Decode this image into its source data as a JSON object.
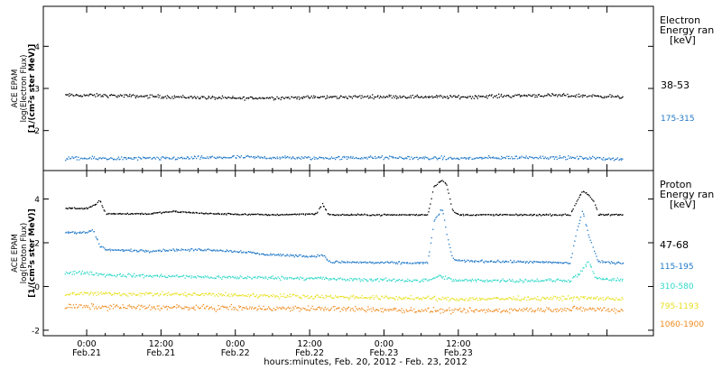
{
  "chart_data": [
    {
      "type": "scatter",
      "ylabel": [
        "ACE EPAM",
        "log(Electron Flux)",
        "[1/(cm²s ster MeV)]"
      ],
      "yticks": [
        2,
        3,
        4
      ],
      "ylim": [
        1.05,
        4.95
      ],
      "legend_title": [
        "Electron",
        "Energy ran",
        "[keV]"
      ],
      "series": [
        {
          "name": "38-53",
          "color": "#000000",
          "points": [
            [
              0,
              2.85
            ],
            [
              12,
              2.82
            ],
            [
              24,
              2.78
            ],
            [
              36,
              2.8
            ],
            [
              48,
              2.82
            ],
            [
              60,
              2.81
            ],
            [
              72,
              2.85
            ],
            [
              84,
              2.83
            ],
            [
              86,
              2.8
            ]
          ],
          "noise": 0.06
        },
        {
          "name": "175-315",
          "color": "#1f78c8",
          "points": [
            [
              0,
              1.35
            ],
            [
              12,
              1.35
            ],
            [
              24,
              1.38
            ],
            [
              36,
              1.36
            ],
            [
              48,
              1.37
            ],
            [
              60,
              1.35
            ],
            [
              72,
              1.38
            ],
            [
              84,
              1.35
            ],
            [
              86,
              1.33
            ]
          ],
          "noise": 0.06
        }
      ]
    },
    {
      "type": "scatter",
      "ylabel": [
        "ACE EPAM",
        "log(Proton Flux)",
        "[1/(cm²s ster MeV)]"
      ],
      "yticks": [
        -2,
        0,
        2,
        4
      ],
      "ylim": [
        -2.25,
        5.3
      ],
      "legend_title": [
        "Proton",
        "Energy ran",
        "[keV]"
      ],
      "series": [
        {
          "name": "47-68",
          "color": "#000000",
          "points": [
            [
              0,
              3.6
            ],
            [
              1.5,
              3.8
            ],
            [
              2,
              4.0
            ],
            [
              3,
              3.35
            ],
            [
              10,
              3.35
            ],
            [
              14,
              3.45
            ],
            [
              20,
              3.35
            ],
            [
              30,
              3.3
            ],
            [
              37,
              3.35
            ],
            [
              38,
              3.8
            ],
            [
              39,
              3.3
            ],
            [
              55,
              3.3
            ],
            [
              56,
              4.6
            ],
            [
              57.3,
              4.9
            ],
            [
              58,
              4.7
            ],
            [
              59,
              3.5
            ],
            [
              60,
              3.3
            ],
            [
              78,
              3.3
            ],
            [
              79,
              3.9
            ],
            [
              80,
              4.4
            ],
            [
              81,
              4.2
            ],
            [
              82,
              3.8
            ],
            [
              82.5,
              3.3
            ],
            [
              86,
              3.3
            ]
          ],
          "noise": 0.05
        },
        {
          "name": "115-195",
          "color": "#1f78c8",
          "points": [
            [
              0,
              2.5
            ],
            [
              1,
              2.6
            ],
            [
              2,
              1.9
            ],
            [
              3,
              1.7
            ],
            [
              10,
              1.65
            ],
            [
              14,
              1.7
            ],
            [
              20,
              1.7
            ],
            [
              26,
              1.6
            ],
            [
              28,
              1.5
            ],
            [
              37,
              1.4
            ],
            [
              38,
              1.5
            ],
            [
              39,
              1.15
            ],
            [
              50,
              1.1
            ],
            [
              55,
              1.1
            ],
            [
              56,
              3.0
            ],
            [
              57.3,
              3.6
            ],
            [
              58,
              2.5
            ],
            [
              59,
              1.3
            ],
            [
              60,
              1.2
            ],
            [
              70,
              1.15
            ],
            [
              78,
              1.1
            ],
            [
              79,
              2.5
            ],
            [
              80,
              3.5
            ],
            [
              81,
              2.3
            ],
            [
              82,
              1.6
            ],
            [
              82.5,
              1.15
            ],
            [
              86,
              1.1
            ]
          ],
          "noise": 0.08
        },
        {
          "name": "310-580",
          "color": "#30d8c8",
          "points": [
            [
              0,
              0.65
            ],
            [
              3,
              0.55
            ],
            [
              20,
              0.45
            ],
            [
              38,
              0.4
            ],
            [
              40,
              0.35
            ],
            [
              55,
              0.3
            ],
            [
              57,
              0.5
            ],
            [
              59,
              0.3
            ],
            [
              78,
              0.3
            ],
            [
              80,
              0.75
            ],
            [
              81,
              1.2
            ],
            [
              82,
              0.4
            ],
            [
              86,
              0.3
            ]
          ],
          "noise": 0.12
        },
        {
          "name": "795-1193",
          "color": "#e8e020",
          "points": [
            [
              0,
              -0.3
            ],
            [
              20,
              -0.35
            ],
            [
              40,
              -0.45
            ],
            [
              60,
              -0.55
            ],
            [
              80,
              -0.5
            ],
            [
              86,
              -0.55
            ]
          ],
          "noise": 0.14
        },
        {
          "name": "1060-1900",
          "color": "#f08c20",
          "points": [
            [
              0,
              -0.9
            ],
            [
              20,
              -0.95
            ],
            [
              40,
              -1.0
            ],
            [
              60,
              -1.1
            ],
            [
              80,
              -1.0
            ],
            [
              86,
              -1.05
            ]
          ],
          "noise": 0.18
        }
      ]
    }
  ],
  "x_axis": {
    "range_hours": [
      -7,
      91.5
    ],
    "ticks": [
      {
        "h": 0,
        "top": "0:00",
        "bottom": "Feb.21"
      },
      {
        "h": 12,
        "top": "12:00",
        "bottom": "Feb.21"
      },
      {
        "h": 24,
        "top": "0:00",
        "bottom": "Feb.22"
      },
      {
        "h": 36,
        "top": "12:00",
        "bottom": "Feb.22"
      },
      {
        "h": 48,
        "top": "0:00",
        "bottom": "Feb.23"
      },
      {
        "h": 60,
        "top": "12:00",
        "bottom": "Feb.23"
      }
    ],
    "data_start_h": -3.5,
    "data_end_h": 86.5,
    "title": "hours:minutes, Feb. 20, 2012 - Feb. 23, 2012"
  }
}
